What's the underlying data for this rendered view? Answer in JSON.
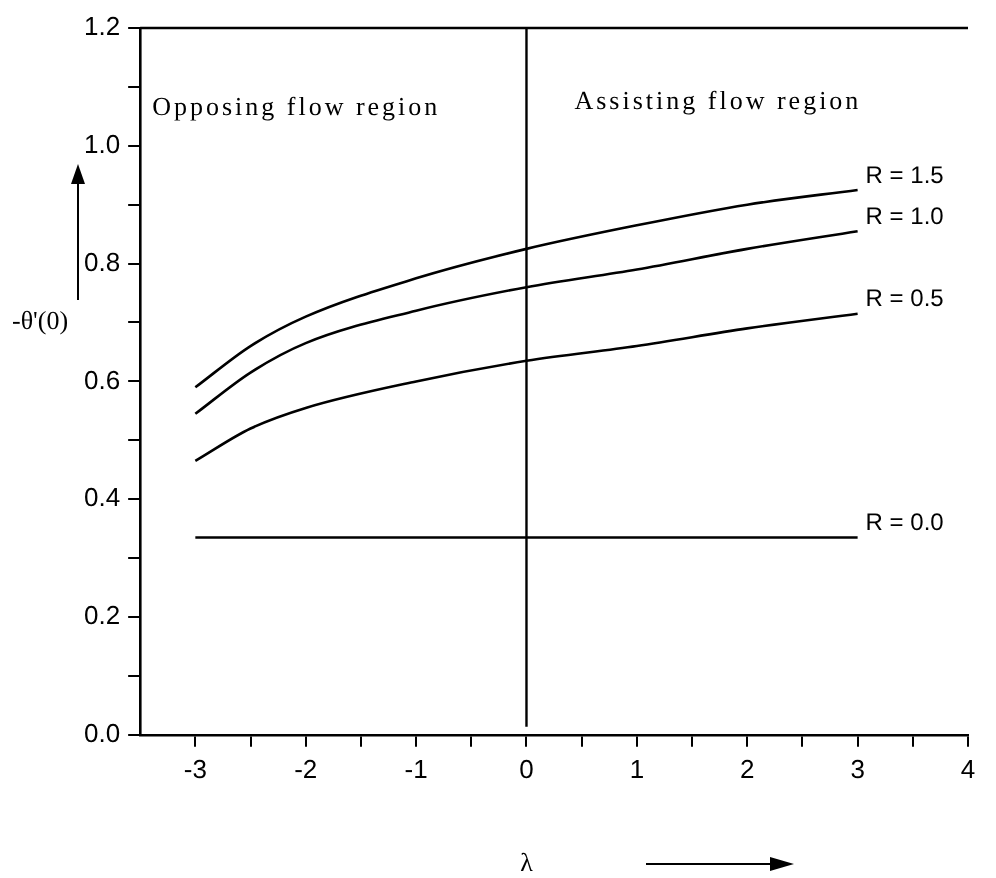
{
  "chart_data": {
    "type": "line",
    "xlabel": "λ",
    "ylabel": "-θ'(0)",
    "annotations": [
      "Opposing flow region",
      "Assisting flow region"
    ],
    "series": [
      {
        "name": "R = 1.5",
        "color": "#000000",
        "x": [
          -3,
          -2.5,
          -2,
          -1,
          0,
          1,
          2,
          3
        ],
        "values": [
          0.59,
          0.66,
          0.71,
          0.775,
          0.825,
          0.865,
          0.9,
          0.925
        ]
      },
      {
        "name": "R = 1.0",
        "color": "#000000",
        "x": [
          -3,
          -2.5,
          -2,
          -1,
          0,
          1,
          2,
          3
        ],
        "values": [
          0.545,
          0.615,
          0.665,
          0.72,
          0.76,
          0.79,
          0.825,
          0.855
        ]
      },
      {
        "name": "R = 0.5",
        "color": "#000000",
        "x": [
          -3,
          -2.5,
          -2,
          -1,
          0,
          1,
          2,
          3
        ],
        "values": [
          0.465,
          0.52,
          0.555,
          0.6,
          0.635,
          0.66,
          0.69,
          0.715
        ]
      },
      {
        "name": "R = 0.0",
        "color": "#000000",
        "x": [
          -3,
          3
        ],
        "values": [
          0.335,
          0.335
        ]
      }
    ],
    "ref_lines": [
      {
        "axis": "x",
        "value": 0,
        "color": "#000000"
      }
    ],
    "xlim": [
      -3.5,
      4
    ],
    "ylim": [
      0,
      1.2
    ],
    "xticks": [
      -3,
      {
        "value": -2.5,
        "label": null
      },
      -2,
      {
        "value": -1.5,
        "label": null
      },
      -1,
      {
        "value": -0.5,
        "label": null
      },
      0,
      {
        "value": 0.5,
        "label": null
      },
      1,
      {
        "value": 1.5,
        "label": null
      },
      2,
      {
        "value": 2.5,
        "label": null
      },
      3,
      {
        "value": 3.5,
        "label": null
      },
      4
    ],
    "yticks": [
      {
        "value": 0,
        "label": "0.0"
      },
      {
        "value": 0.1,
        "label": null
      },
      0.2,
      {
        "value": 0.3,
        "label": null
      },
      0.4,
      {
        "value": 0.5,
        "label": null
      },
      0.6,
      {
        "value": 0.7,
        "label": null
      },
      0.8,
      {
        "value": 0.9,
        "label": null
      },
      {
        "value": 1,
        "label": "1.0"
      },
      {
        "value": 1.1,
        "label": null
      },
      1.2
    ],
    "grid": false,
    "legend": false,
    "marker": "none",
    "line_style": "solid"
  }
}
